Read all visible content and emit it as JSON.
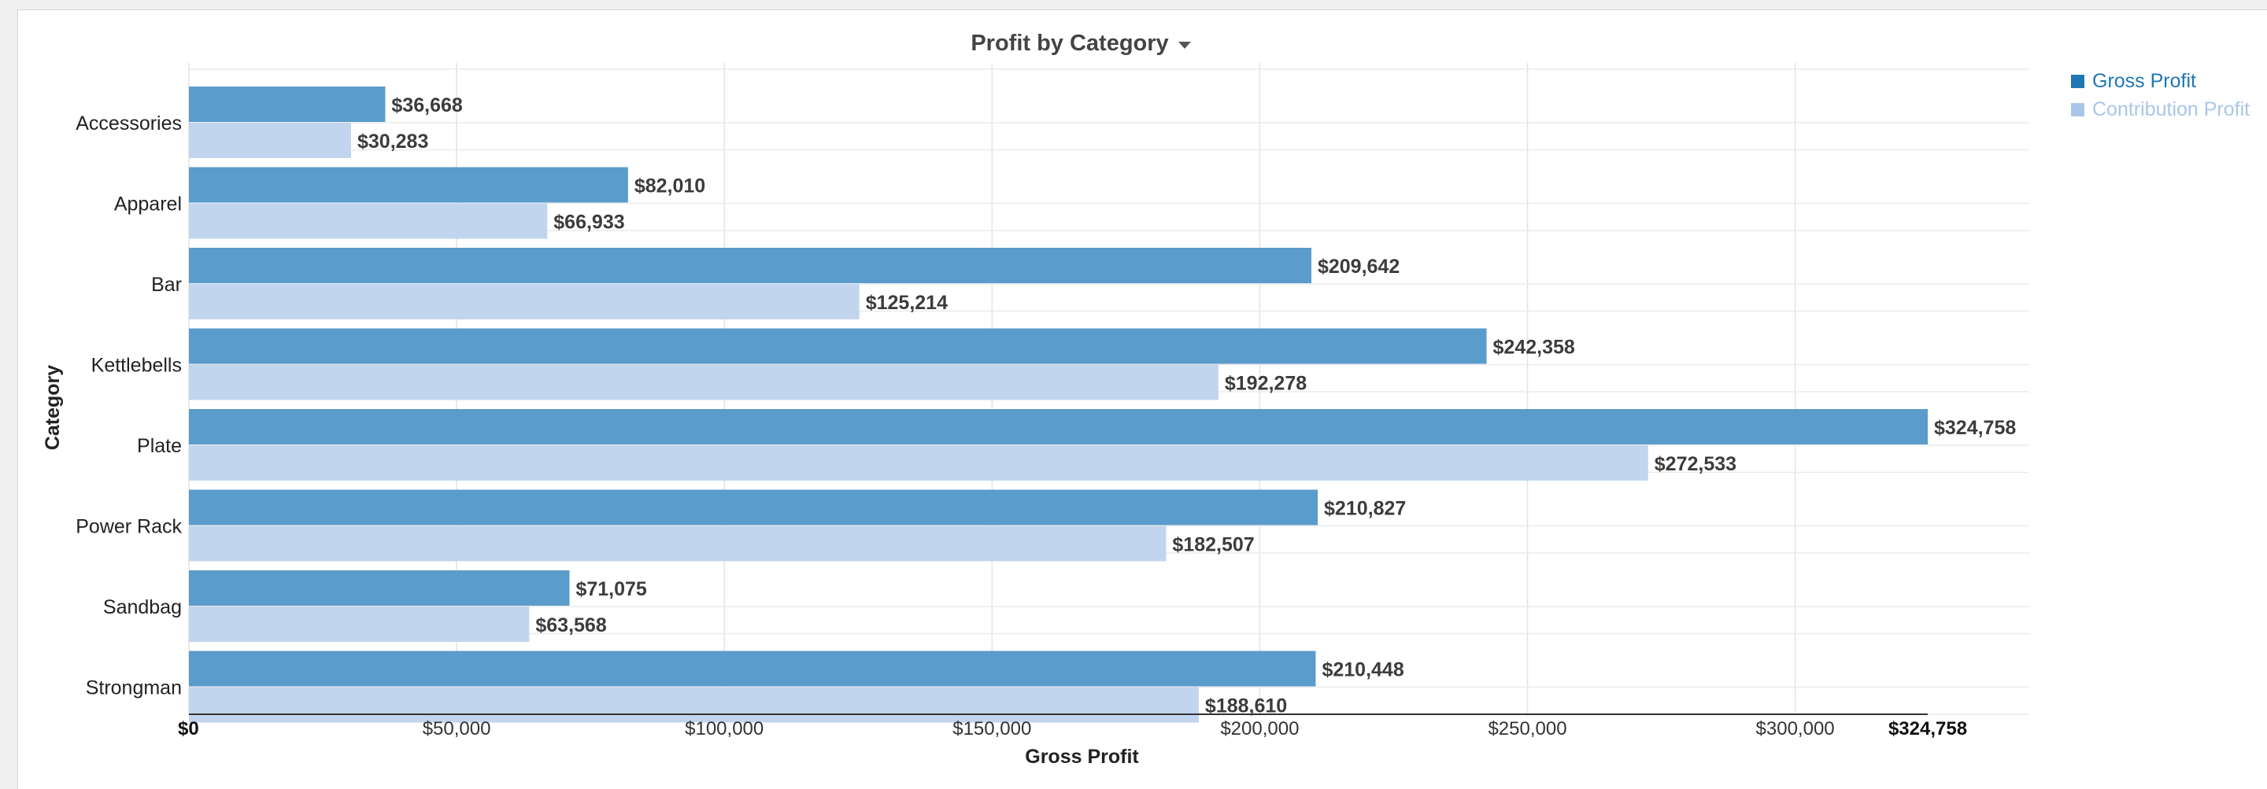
{
  "chart_data": {
    "type": "bar",
    "orientation": "horizontal",
    "title": "Profit by Category",
    "xlabel": "Gross Profit",
    "ylabel": "Category",
    "xlim": [
      0,
      324758
    ],
    "categories": [
      "Accessories",
      "Apparel",
      "Bar",
      "Kettlebells",
      "Plate",
      "Power Rack",
      "Sandbag",
      "Strongman"
    ],
    "series": [
      {
        "name": "Gross Profit",
        "color": "#5a9ccb",
        "values": [
          36668,
          82010,
          209642,
          242358,
          324758,
          210827,
          71075,
          210448
        ],
        "labels": [
          "$36,668",
          "$82,010",
          "$209,642",
          "$242,358",
          "$324,758",
          "$210,827",
          "$71,075",
          "$210,448"
        ]
      },
      {
        "name": "Contribution Profit",
        "color": "#c2d5ee",
        "values": [
          30283,
          66933,
          125214,
          192278,
          272533,
          182507,
          63568,
          188610
        ],
        "labels": [
          "$30,283",
          "$66,933",
          "$125,214",
          "$192,278",
          "$272,533",
          "$182,507",
          "$63,568",
          "$188,610"
        ]
      }
    ],
    "x_ticks": [
      {
        "value": 0,
        "label": "$0",
        "bold": true
      },
      {
        "value": 50000,
        "label": "$50,000",
        "bold": false
      },
      {
        "value": 100000,
        "label": "$100,000",
        "bold": false
      },
      {
        "value": 150000,
        "label": "$150,000",
        "bold": false
      },
      {
        "value": 200000,
        "label": "$200,000",
        "bold": false
      },
      {
        "value": 250000,
        "label": "$250,000",
        "bold": false
      },
      {
        "value": 300000,
        "label": "$300,000",
        "bold": false
      },
      {
        "value": 324758,
        "label": "$324,758",
        "bold": true
      }
    ],
    "grid": true,
    "legend": "top-right"
  },
  "legend": {
    "items": [
      {
        "label": "Gross Profit",
        "color": "#1f77b4"
      },
      {
        "label": "Contribution Profit",
        "color": "#a9c6ea"
      }
    ]
  }
}
